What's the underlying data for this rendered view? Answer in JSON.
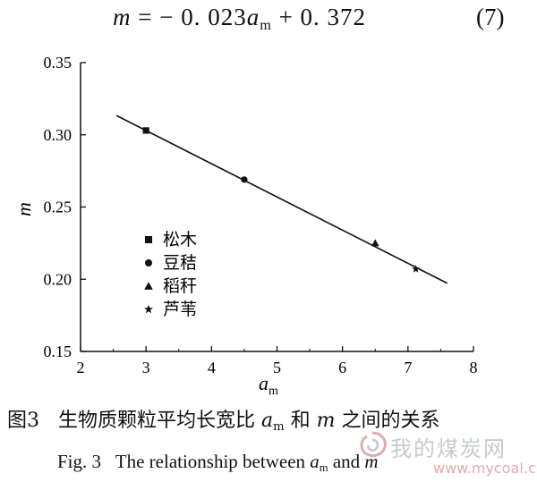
{
  "equation": {
    "lhs": "m",
    "eq": " = − 0. 023",
    "var": "a",
    "var_sub": "m",
    "tail": " + 0. 372",
    "number": "(7)"
  },
  "chart_data": {
    "type": "scatter",
    "xlabel": "a",
    "xlabel_sub": "m",
    "ylabel": "m",
    "xlim": [
      2,
      8
    ],
    "ylim": [
      0.15,
      0.35
    ],
    "xticks": [
      "2",
      "3",
      "4",
      "5",
      "6",
      "7",
      "8"
    ],
    "yticks": [
      "0.15",
      "0.20",
      "0.25",
      "0.30",
      "0.35"
    ],
    "series": [
      {
        "name": "松木",
        "marker": "square",
        "x": [
          3.0
        ],
        "y": [
          0.303
        ]
      },
      {
        "name": "豆秸",
        "marker": "circle",
        "x": [
          4.5
        ],
        "y": [
          0.269
        ]
      },
      {
        "name": "稻秆",
        "marker": "triangle",
        "x": [
          6.5
        ],
        "y": [
          0.225
        ]
      },
      {
        "name": "芦苇",
        "marker": "star",
        "x": [
          7.12
        ],
        "y": [
          0.207
        ]
      }
    ],
    "fit_line": {
      "x": [
        2.55,
        7.6
      ],
      "y": [
        0.3133,
        0.1972
      ]
    },
    "legend_position": "lower-left"
  },
  "caption": {
    "cn_prefix": "图3",
    "cn_mid": "生物质颗粒平均长宽比",
    "cn_var": "a",
    "cn_var_sub": "m",
    "cn_and": "和",
    "cn_var2": "m",
    "cn_tail": "之间的关系",
    "en_prefix": "Fig. 3",
    "en_mid": "The relationship between",
    "en_var": "a",
    "en_var_sub": "m",
    "en_and": "and",
    "en_var2": "m"
  },
  "watermark": {
    "text": "我的煤炭网",
    "url": "www.mycoal.cn"
  }
}
